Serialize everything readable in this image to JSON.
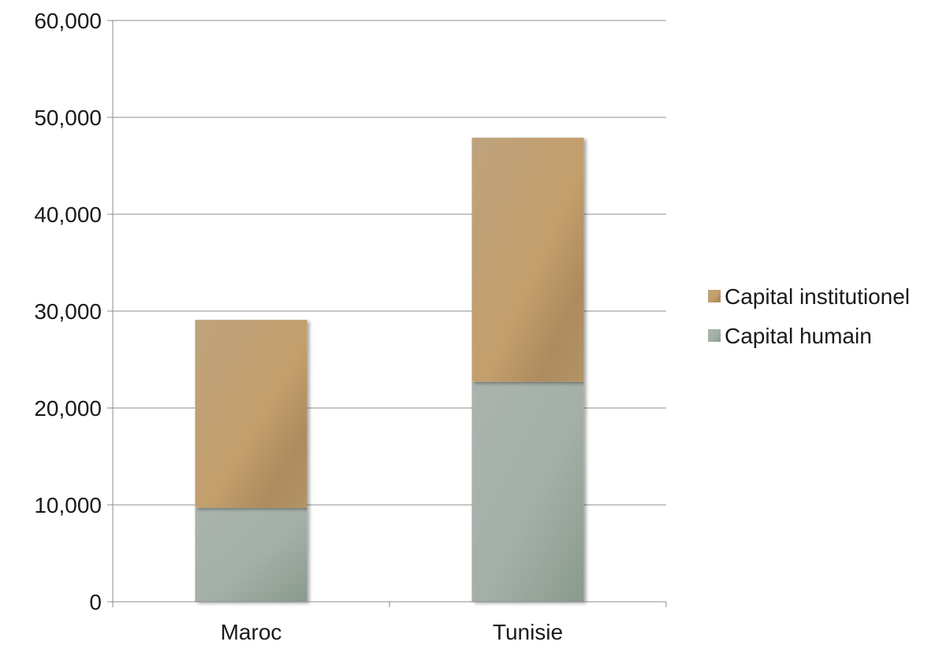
{
  "chart_data": {
    "type": "bar",
    "stacked": true,
    "categories": [
      "Maroc",
      "Tunisie"
    ],
    "series": [
      {
        "name": "Capital humain",
        "values": [
          9700,
          22700
        ],
        "color": "#a5b0a8"
      },
      {
        "name": "Capital institutionel",
        "values": [
          19400,
          25200
        ],
        "color": "#bb9f77"
      }
    ],
    "ylim": [
      0,
      60000
    ],
    "yticks": [
      0,
      10000,
      20000,
      30000,
      40000,
      50000,
      60000
    ],
    "ytick_labels": [
      "0",
      "10,000",
      "20,000",
      "30,000",
      "40,000",
      "50,000",
      "60,000"
    ],
    "grid": true,
    "legend_position": "right",
    "legend_order": [
      "Capital institutionel",
      "Capital humain"
    ]
  }
}
